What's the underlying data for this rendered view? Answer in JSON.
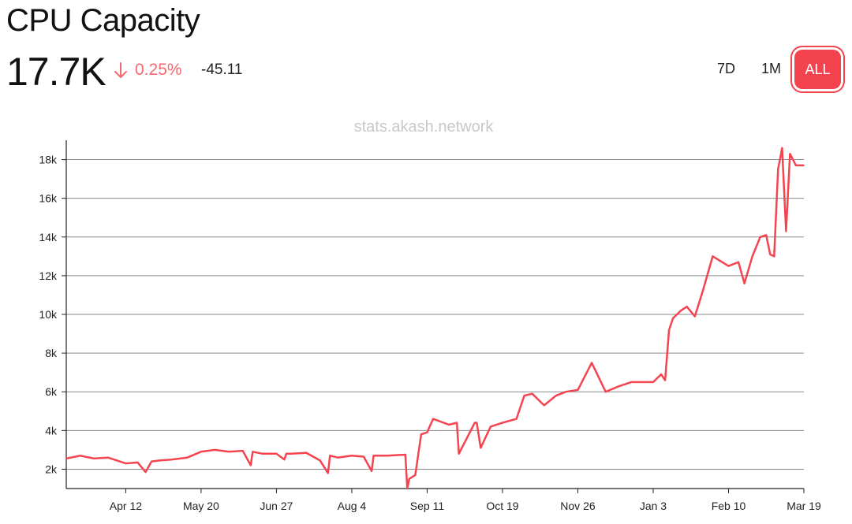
{
  "header": {
    "title": "CPU Capacity",
    "value": "17.7K",
    "change_pct": "0.25%",
    "change_abs": "-45.11"
  },
  "range_buttons": [
    "7D",
    "1M",
    "ALL"
  ],
  "active_range": "ALL",
  "watermark": "stats.akash.network",
  "colors": {
    "accent": "#f2434f",
    "line": "#f4444f",
    "down": "#f6686f"
  },
  "chart_data": {
    "type": "line",
    "title": "CPU Capacity",
    "xlabel": "",
    "ylabel": "",
    "x_ticks": [
      "Apr 12",
      "May 20",
      "Jun 27",
      "Aug 4",
      "Sep 11",
      "Oct 19",
      "Nov 26",
      "Jan 3",
      "Feb 10",
      "Mar 19"
    ],
    "y_ticks": [
      "2k",
      "4k",
      "6k",
      "8k",
      "10k",
      "12k",
      "14k",
      "16k",
      "18k"
    ],
    "ylim": [
      1000,
      19000
    ],
    "grid": true,
    "series": [
      {
        "x": [
          "2023-03-13",
          "2023-03-20",
          "2023-03-27",
          "2023-04-03",
          "2023-04-12",
          "2023-04-18",
          "2023-04-22",
          "2023-04-25",
          "2023-04-29",
          "2023-05-05",
          "2023-05-13",
          "2023-05-20",
          "2023-05-27",
          "2023-06-03",
          "2023-06-10",
          "2023-06-14",
          "2023-06-15",
          "2023-06-20",
          "2023-06-27",
          "2023-07-01",
          "2023-07-02",
          "2023-07-05",
          "2023-07-12",
          "2023-07-19",
          "2023-07-23",
          "2023-07-24",
          "2023-07-28",
          "2023-08-04",
          "2023-08-10",
          "2023-08-14",
          "2023-08-15",
          "2023-08-22",
          "2023-08-31",
          "2023-09-01",
          "2023-09-02",
          "2023-09-05",
          "2023-09-08",
          "2023-09-11",
          "2023-09-14",
          "2023-09-22",
          "2023-09-26",
          "2023-09-27",
          "2023-10-05",
          "2023-10-06",
          "2023-10-08",
          "2023-10-13",
          "2023-10-19",
          "2023-10-26",
          "2023-10-30",
          "2023-11-03",
          "2023-11-09",
          "2023-11-15",
          "2023-11-20",
          "2023-11-26",
          "2023-12-03",
          "2023-12-10",
          "2023-12-17",
          "2023-12-23",
          "2023-12-27",
          "2024-01-03",
          "2024-01-07",
          "2024-01-09",
          "2024-01-11",
          "2024-01-13",
          "2024-01-17",
          "2024-01-20",
          "2024-01-24",
          "2024-01-28",
          "2024-02-02",
          "2024-02-10",
          "2024-02-15",
          "2024-02-18",
          "2024-02-22",
          "2024-02-26",
          "2024-02-29",
          "2024-03-02",
          "2024-03-04",
          "2024-03-06",
          "2024-03-08",
          "2024-03-10",
          "2024-03-12",
          "2024-03-15",
          "2024-03-19"
        ],
        "y": [
          2550,
          2700,
          2550,
          2600,
          2300,
          2350,
          1850,
          2400,
          2450,
          2500,
          2600,
          2900,
          3000,
          2900,
          2950,
          2200,
          2900,
          2800,
          2800,
          2500,
          2800,
          2800,
          2850,
          2450,
          1800,
          2700,
          2600,
          2700,
          2650,
          1900,
          2700,
          2700,
          2750,
          1000,
          1500,
          1700,
          3800,
          3900,
          4600,
          4300,
          4400,
          2800,
          4400,
          4400,
          3100,
          4200,
          4400,
          4600,
          5800,
          5900,
          5300,
          5800,
          6000,
          6100,
          7500,
          6000,
          6300,
          6500,
          6500,
          6500,
          6900,
          6600,
          9200,
          9800,
          10200,
          10400,
          9900,
          11200,
          13000,
          12500,
          12700,
          11600,
          13000,
          14000,
          14100,
          13100,
          13000,
          17500,
          18600,
          14300,
          18300,
          17700,
          17700
        ]
      }
    ]
  }
}
